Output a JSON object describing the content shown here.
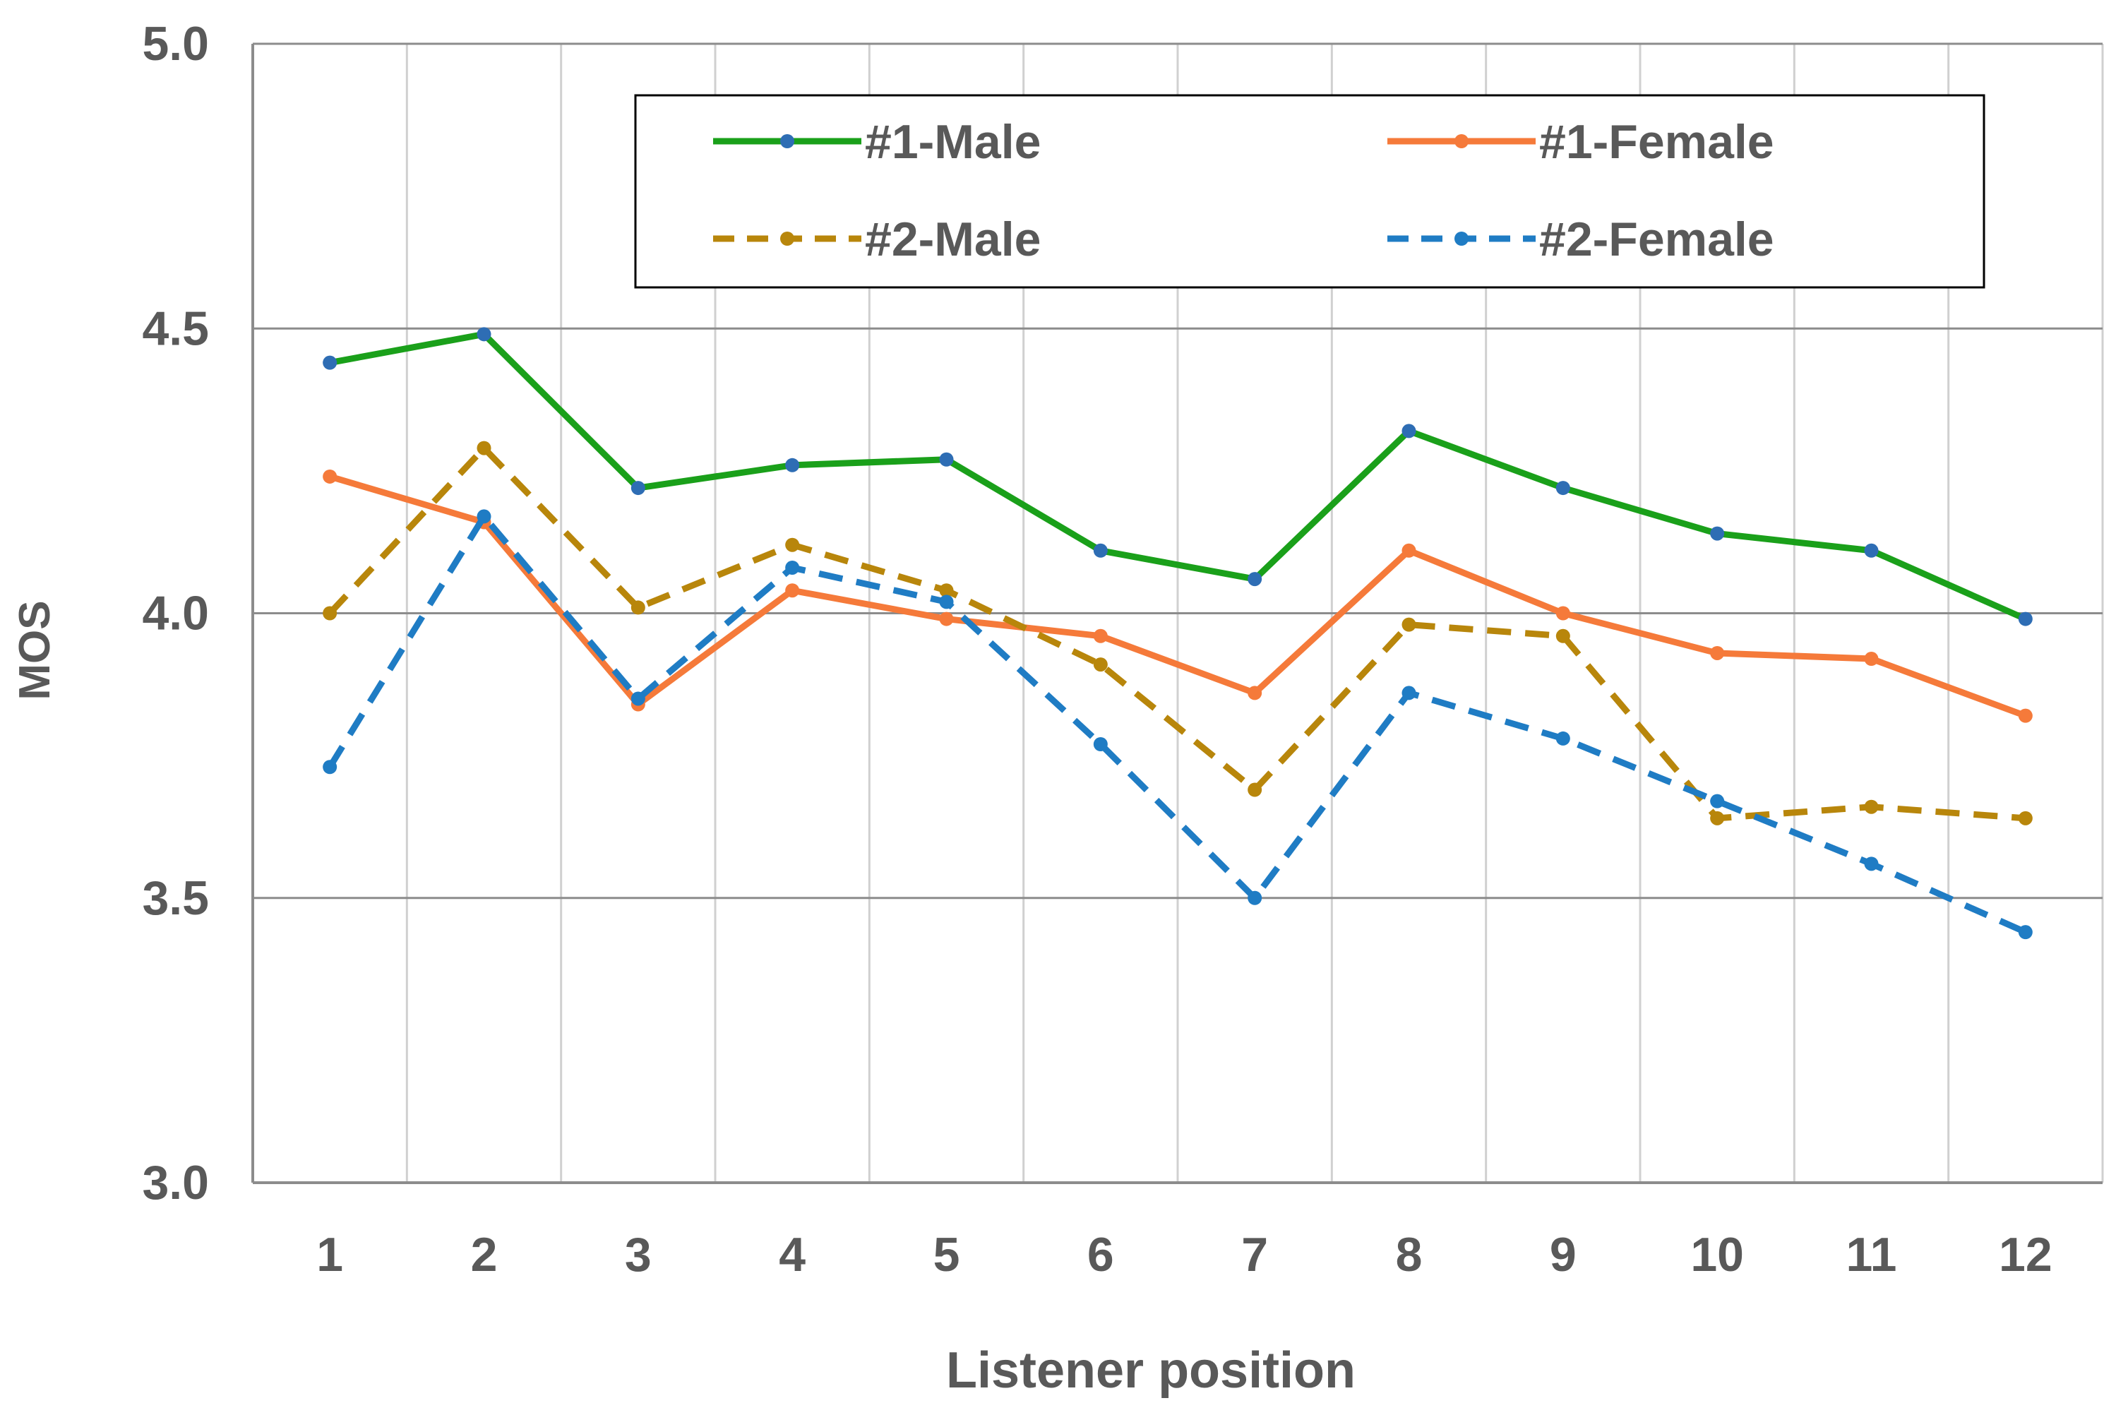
{
  "chart_data": {
    "type": "line",
    "title": "",
    "xlabel": "Listener position",
    "ylabel": "MOS",
    "categories": [
      "1",
      "2",
      "3",
      "4",
      "5",
      "6",
      "7",
      "8",
      "9",
      "10",
      "11",
      "12"
    ],
    "ylim": [
      3.0,
      5.0
    ],
    "yticks": [
      3.0,
      3.5,
      4.0,
      4.5,
      5.0
    ],
    "ytick_labels": [
      "3.0",
      "3.5",
      "4.0",
      "4.5",
      "5.0"
    ],
    "grid": true,
    "legend_position": "top",
    "series": [
      {
        "name": "#1-Male",
        "color": "#1aa01a",
        "dashed": false,
        "marker_color": "#2e6db4",
        "values": [
          4.44,
          4.49,
          4.22,
          4.26,
          4.27,
          4.11,
          4.06,
          4.32,
          4.22,
          4.14,
          4.11,
          3.99
        ]
      },
      {
        "name": "#1-Female",
        "color": "#f57a3a",
        "dashed": false,
        "marker_color": "#f57a3a",
        "values": [
          4.24,
          4.16,
          3.84,
          4.04,
          3.99,
          3.96,
          3.86,
          4.11,
          4.0,
          3.93,
          3.92,
          3.82
        ]
      },
      {
        "name": "#2-Male",
        "color": "#b8860b",
        "dashed": true,
        "marker_color": "#b8860b",
        "values": [
          4.0,
          4.29,
          4.01,
          4.12,
          4.04,
          3.91,
          3.69,
          3.98,
          3.96,
          3.64,
          3.66,
          3.64
        ]
      },
      {
        "name": "#2-Female",
        "color": "#1f7cc4",
        "dashed": true,
        "marker_color": "#1f7cc4",
        "values": [
          3.73,
          4.17,
          3.85,
          4.08,
          4.02,
          3.77,
          3.5,
          3.86,
          3.78,
          3.67,
          3.56,
          3.44
        ]
      }
    ]
  }
}
